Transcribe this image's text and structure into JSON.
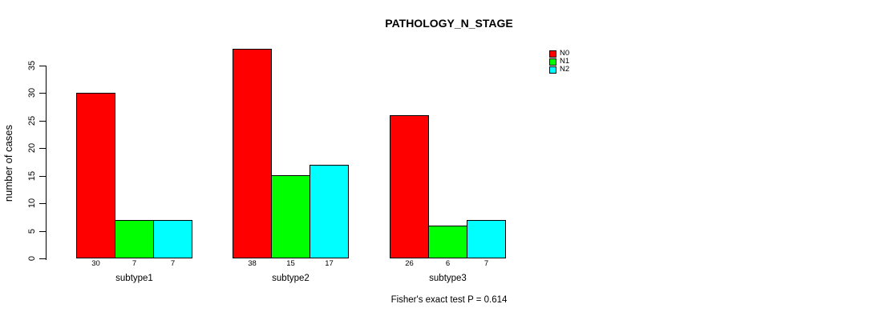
{
  "title": "PATHOLOGY_N_STAGE",
  "footnote": "Fisher's exact test P = 0.614",
  "legend": [
    {
      "label": "N0",
      "color": "#ff0000"
    },
    {
      "label": "N1",
      "color": "#00ff00"
    },
    {
      "label": "N2",
      "color": "#00ffff"
    }
  ],
  "chart_data": {
    "type": "bar",
    "title": "PATHOLOGY_N_STAGE",
    "xlabel": "",
    "ylabel": "number of cases",
    "categories": [
      "subtype1",
      "subtype2",
      "subtype3"
    ],
    "series": [
      {
        "name": "N0",
        "color": "#ff0000",
        "values": [
          30,
          38,
          26
        ]
      },
      {
        "name": "N1",
        "color": "#00ff00",
        "values": [
          7,
          15,
          6
        ]
      },
      {
        "name": "N2",
        "color": "#00ffff",
        "values": [
          7,
          17,
          7
        ]
      }
    ],
    "bar_value_labels": [
      [
        30,
        7,
        7
      ],
      [
        38,
        15,
        17
      ],
      [
        26,
        6,
        7
      ]
    ],
    "yticks": [
      0,
      5,
      10,
      15,
      20,
      25,
      30,
      35
    ],
    "ylim": [
      0,
      38
    ],
    "grid": false,
    "legend_position": "top-right",
    "annotation": "Fisher's exact test P = 0.614"
  }
}
